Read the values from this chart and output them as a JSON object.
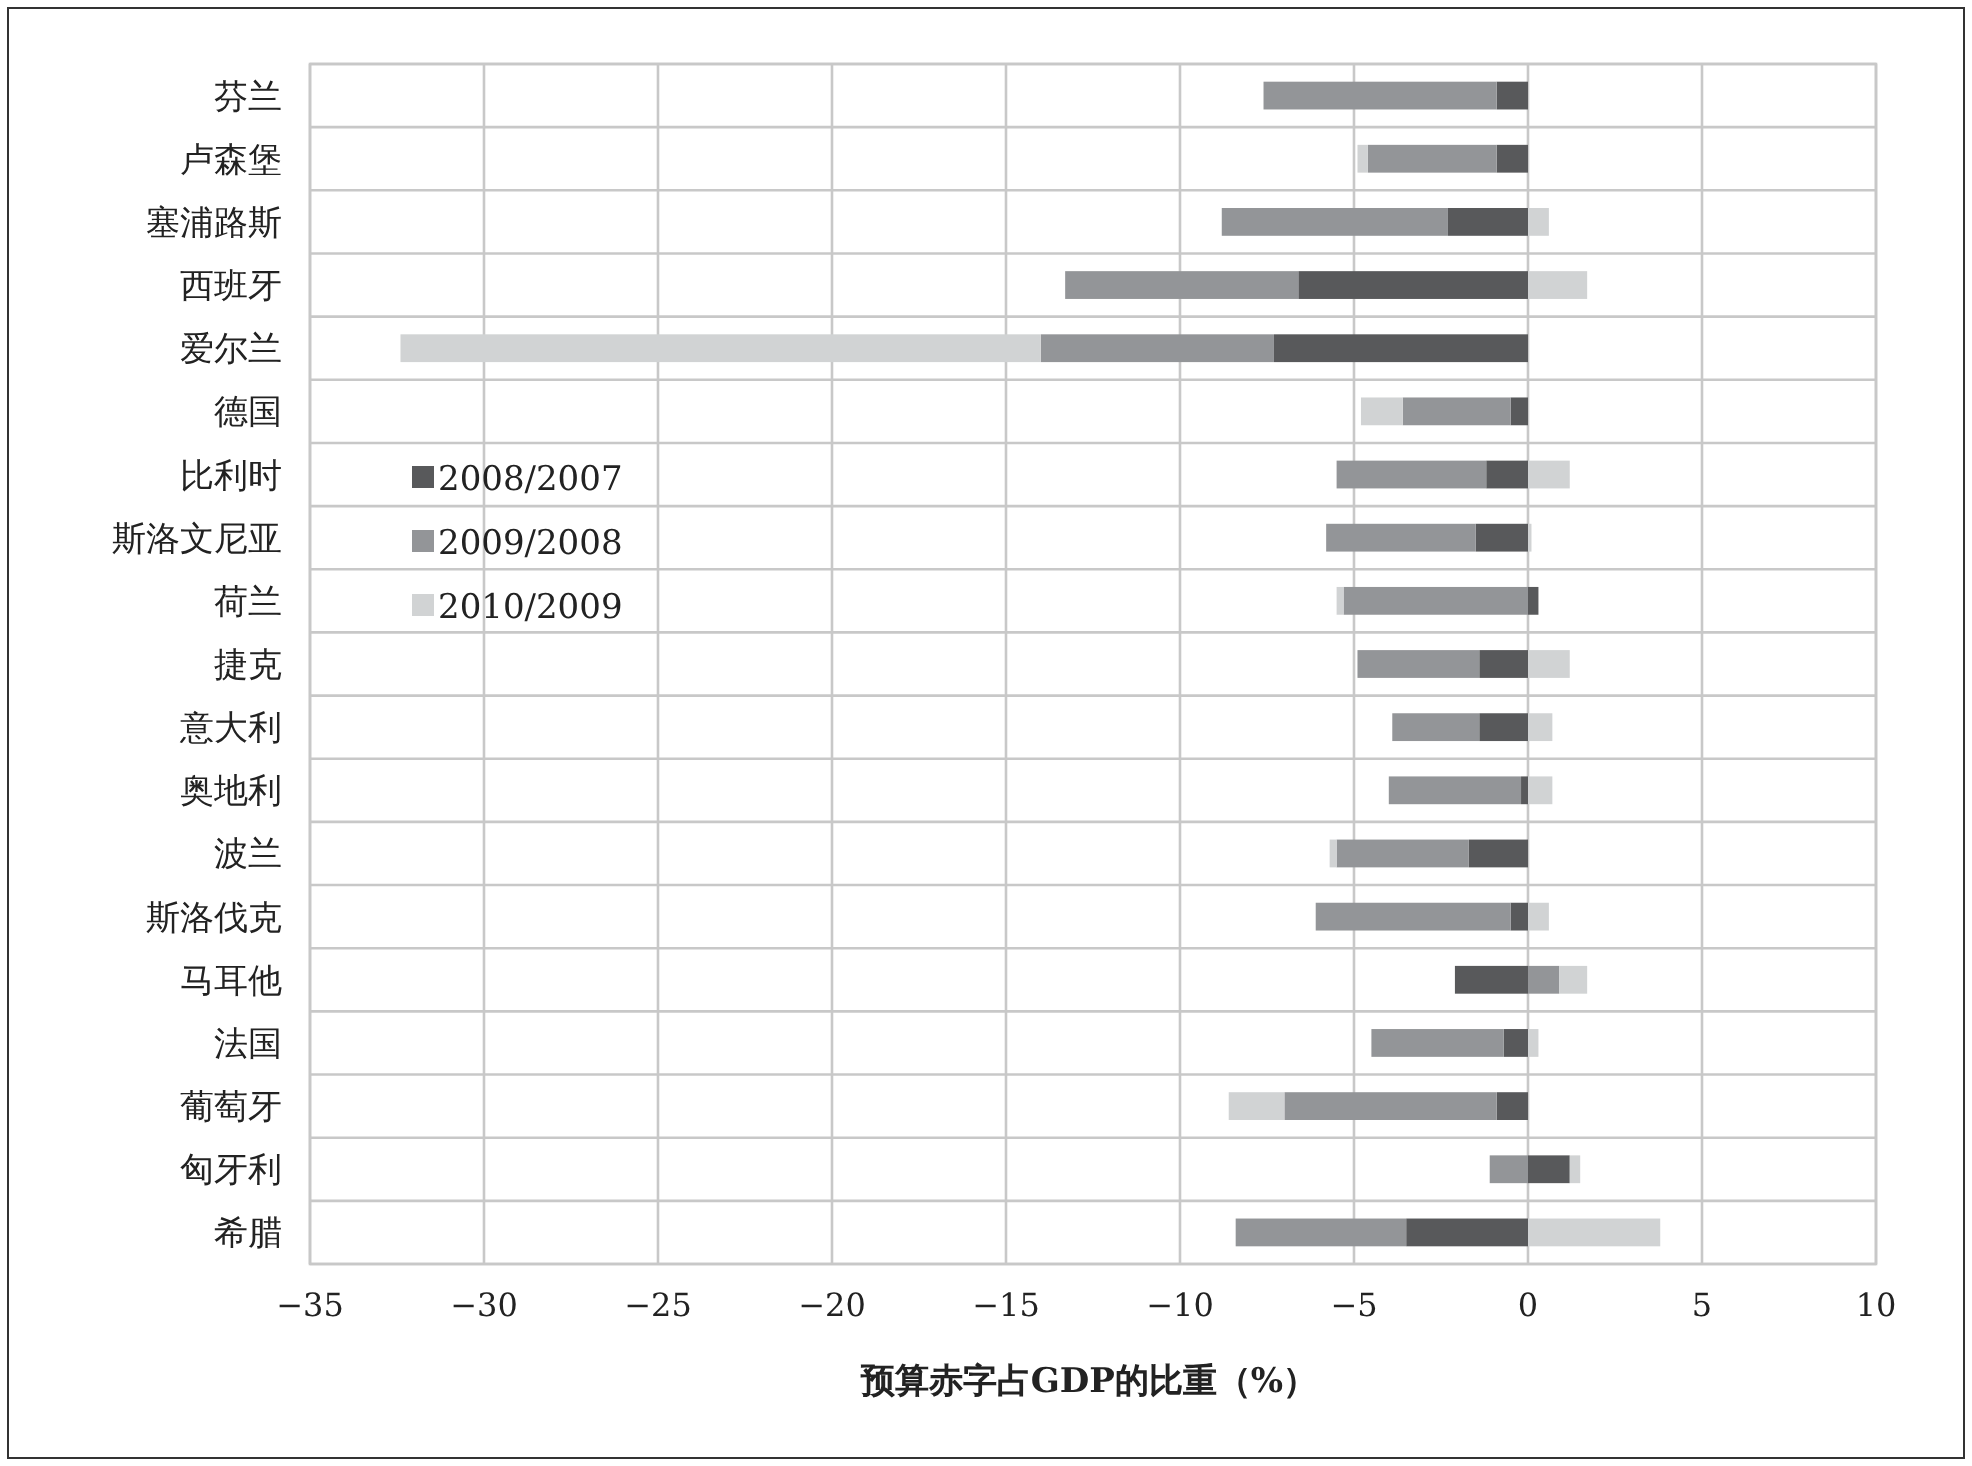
{
  "chart_data": {
    "type": "bar",
    "orientation": "horizontal",
    "stacked": true,
    "xlabel": "预算赤字占GDP的比重（%）",
    "categories": [
      "芬兰",
      "卢森堡",
      "塞浦路斯",
      "西班牙",
      "爱尔兰",
      "德国",
      "比利时",
      "斯洛文尼亚",
      "荷兰",
      "捷克",
      "意大利",
      "奥地利",
      "波兰",
      "斯洛伐克",
      "马耳他",
      "法国",
      "葡萄牙",
      "匈牙利",
      "希腊"
    ],
    "series": [
      {
        "name": "2008/2007",
        "color": "#58595b",
        "values": [
          -0.9,
          -0.9,
          -2.3,
          -6.6,
          -7.3,
          -0.5,
          -1.2,
          -1.5,
          0.3,
          -1.4,
          -1.4,
          -0.2,
          -1.7,
          -0.5,
          -2.1,
          -0.7,
          -0.9,
          1.2,
          -3.5
        ]
      },
      {
        "name": "2009/2008",
        "color": "#939598",
        "values": [
          -6.7,
          -3.7,
          -6.5,
          -6.7,
          -6.7,
          -3.1,
          -4.3,
          -4.3,
          -5.3,
          -3.5,
          -2.5,
          -3.8,
          -3.8,
          -5.6,
          0.9,
          -3.8,
          -6.1,
          -1.1,
          -4.9
        ]
      },
      {
        "name": "2010/2009",
        "color": "#d1d3d4",
        "values": [
          null,
          -0.3,
          0.6,
          1.7,
          -18.4,
          -1.2,
          1.2,
          0.1,
          -0.2,
          1.2,
          0.7,
          0.7,
          -0.2,
          0.6,
          0.8,
          0.3,
          -1.6,
          0.3,
          3.8
        ]
      }
    ],
    "xlim": [
      -35,
      10
    ],
    "xticks": [
      -35,
      -30,
      -25,
      -20,
      -15,
      -10,
      -5,
      0,
      5,
      10
    ],
    "grid": true,
    "legend": "left"
  }
}
